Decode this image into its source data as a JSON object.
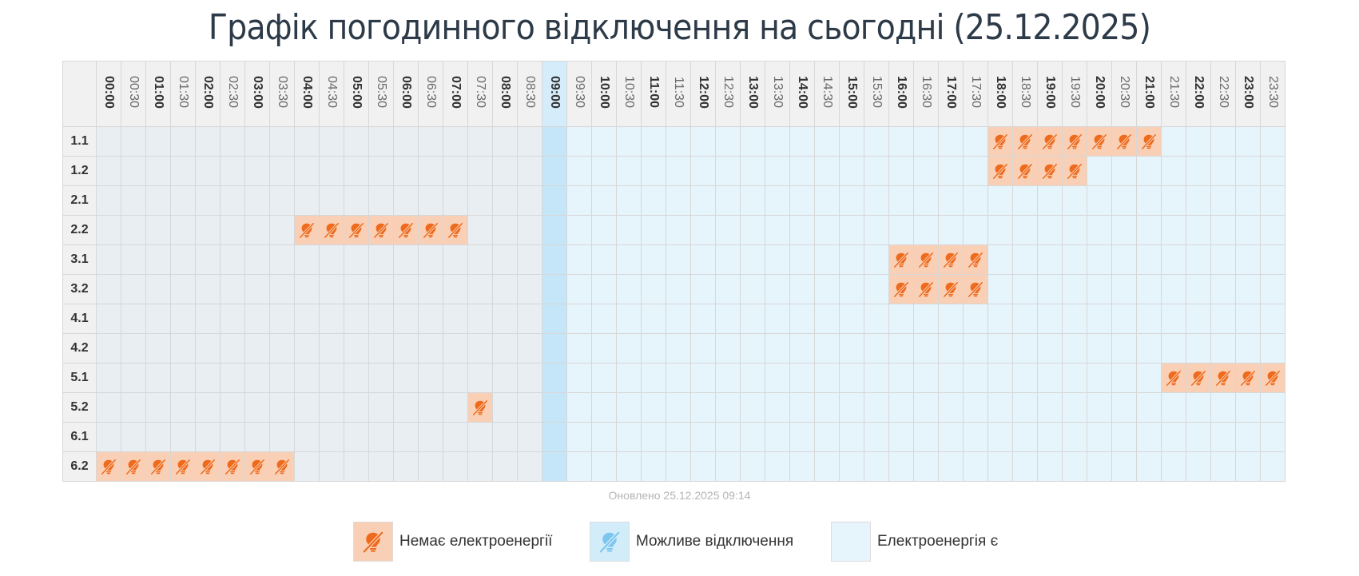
{
  "title": "Графік погодинного відключення на сьогодні (25.12.2025)",
  "times": [
    "00:00",
    "00:30",
    "01:00",
    "01:30",
    "02:00",
    "02:30",
    "03:00",
    "03:30",
    "04:00",
    "04:30",
    "05:00",
    "05:30",
    "06:00",
    "06:30",
    "07:00",
    "07:30",
    "08:00",
    "08:30",
    "09:00",
    "09:30",
    "10:00",
    "10:30",
    "11:00",
    "11:30",
    "12:00",
    "12:30",
    "13:00",
    "13:30",
    "14:00",
    "14:30",
    "15:00",
    "15:30",
    "16:00",
    "16:30",
    "17:00",
    "17:30",
    "18:00",
    "18:30",
    "19:00",
    "19:30",
    "20:00",
    "20:30",
    "21:00",
    "21:30",
    "22:00",
    "22:30",
    "23:00",
    "23:30"
  ],
  "current_slot": "09:00",
  "groups": [
    {
      "label": "1.1",
      "off": [
        "18:00",
        "18:30",
        "19:00",
        "19:30",
        "20:00",
        "20:30",
        "21:00"
      ]
    },
    {
      "label": "1.2",
      "off": [
        "18:00",
        "18:30",
        "19:00",
        "19:30"
      ]
    },
    {
      "label": "2.1",
      "off": []
    },
    {
      "label": "2.2",
      "off": [
        "04:00",
        "04:30",
        "05:00",
        "05:30",
        "06:00",
        "06:30",
        "07:00"
      ]
    },
    {
      "label": "3.1",
      "off": [
        "16:00",
        "16:30",
        "17:00",
        "17:30"
      ]
    },
    {
      "label": "3.2",
      "off": [
        "16:00",
        "16:30",
        "17:00",
        "17:30"
      ]
    },
    {
      "label": "4.1",
      "off": []
    },
    {
      "label": "4.2",
      "off": []
    },
    {
      "label": "5.1",
      "off": [
        "21:30",
        "22:00",
        "22:30",
        "23:00",
        "23:30"
      ]
    },
    {
      "label": "5.2",
      "off": [
        "07:30"
      ]
    },
    {
      "label": "6.1",
      "off": []
    },
    {
      "label": "6.2",
      "off": [
        "00:00",
        "00:30",
        "01:00",
        "01:30",
        "02:00",
        "02:30",
        "03:00",
        "03:30"
      ]
    }
  ],
  "updated": "Оновлено 25.12.2025 09:14",
  "legend": {
    "no_power": "Немає електроенергії",
    "possible_outage": "Можливе відключення",
    "power_on": "Електроенергія є"
  },
  "colors": {
    "no_power_bg": "#f9d0b6",
    "no_power_icon": "#ee6a1c",
    "possible_bg": "#d2ecfa",
    "possible_icon": "#7cc6ee",
    "power_on_bg": "#e6f4fc",
    "past_bg": "#e8eef2",
    "current_bg": "#c5e6f8",
    "title": "#2d3a48"
  },
  "icons": {
    "no_power": "no-power-bulb-icon",
    "possible_outage": "possible-outage-bulb-icon"
  }
}
